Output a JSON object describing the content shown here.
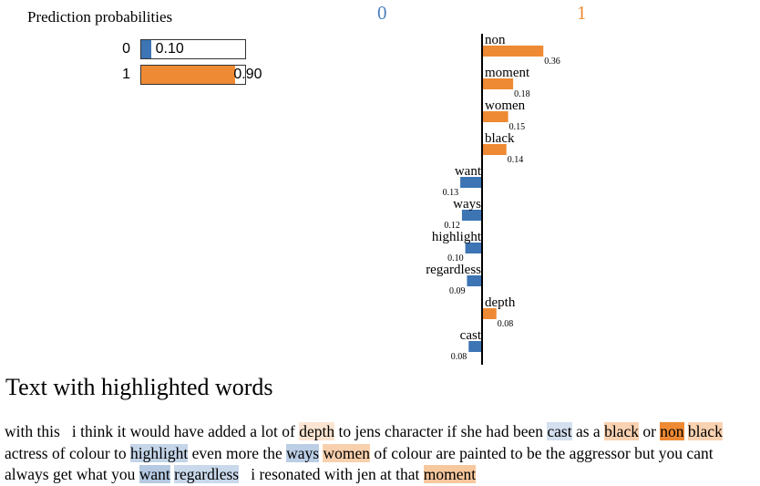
{
  "probabilities": {
    "title": "Prediction probabilities",
    "rows": [
      {
        "class": "0",
        "value": 0.1,
        "label": "0.10",
        "color": "#3c74b4"
      },
      {
        "class": "1",
        "value": 0.9,
        "label": "0.90",
        "color": "#ee8a33"
      }
    ]
  },
  "chart_data": {
    "type": "bar",
    "orientation": "horizontal",
    "class_labels": [
      {
        "text": "0",
        "color": "#4f81bd"
      },
      {
        "text": "1",
        "color": "#ee8a33"
      }
    ],
    "categories": [
      "non",
      "moment",
      "women",
      "black",
      "want",
      "ways",
      "highlight",
      "regardless",
      "depth",
      "cast"
    ],
    "values": [
      0.36,
      0.18,
      0.15,
      0.14,
      0.13,
      0.12,
      0.1,
      0.09,
      0.08,
      0.08
    ],
    "labels": [
      "0.36",
      "0.18",
      "0.15",
      "0.14",
      "0.13",
      "0.12",
      "0.10",
      "0.09",
      "0.08",
      "0.08"
    ],
    "direction": [
      "1",
      "1",
      "1",
      "1",
      "0",
      "0",
      "0",
      "0",
      "1",
      "0"
    ],
    "colors": {
      "0": "#3c74b4",
      "1": "#ee8a33"
    }
  },
  "text_section": {
    "title": "Text with highlighted words",
    "tokens": [
      {
        "t": "with this   i think it would have added a lot of "
      },
      {
        "t": "depth",
        "hl": "1",
        "strength": 0.22
      },
      {
        "t": " to jens character if she had been "
      },
      {
        "t": "cast",
        "hl": "0",
        "strength": 0.22
      },
      {
        "t": " as a "
      },
      {
        "t": "black",
        "hl": "1",
        "strength": 0.38
      },
      {
        "t": " or "
      },
      {
        "t": "non",
        "hl": "1",
        "strength": 1.0
      },
      {
        "t": " "
      },
      {
        "t": "black",
        "hl": "1",
        "strength": 0.38
      },
      {
        "t": " actress of colour to "
      },
      {
        "t": "highlight",
        "hl": "0",
        "strength": 0.3
      },
      {
        "t": " even more the "
      },
      {
        "t": "ways",
        "hl": "0",
        "strength": 0.35
      },
      {
        "t": " "
      },
      {
        "t": "women",
        "hl": "1",
        "strength": 0.4
      },
      {
        "t": " of colour are painted to be the aggressor but you cant always get what you "
      },
      {
        "t": "want",
        "hl": "0",
        "strength": 0.38
      },
      {
        "t": " "
      },
      {
        "t": "regardless",
        "hl": "0",
        "strength": 0.28
      },
      {
        "t": "   i resonated with jen at that "
      },
      {
        "t": "moment",
        "hl": "1",
        "strength": 0.48
      }
    ]
  }
}
